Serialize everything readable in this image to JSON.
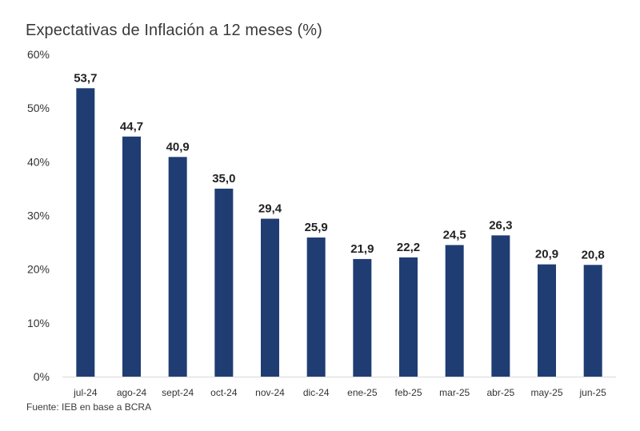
{
  "chart_data": {
    "type": "bar",
    "title": "Expectativas de Inflación a 12 meses (%)",
    "source": "Fuente: IEB en base a BCRA",
    "categories": [
      "jul-24",
      "ago-24",
      "sept-24",
      "oct-24",
      "nov-24",
      "dic-24",
      "ene-25",
      "feb-25",
      "mar-25",
      "abr-25",
      "may-25",
      "jun-25"
    ],
    "values": [
      53.7,
      44.7,
      40.9,
      35.0,
      29.4,
      25.9,
      21.9,
      22.2,
      24.5,
      26.3,
      20.9,
      20.8
    ],
    "value_labels": [
      "53,7",
      "44,7",
      "40,9",
      "35,0",
      "29,4",
      "25,9",
      "21,9",
      "22,2",
      "24,5",
      "26,3",
      "20,9",
      "20,8"
    ],
    "y_ticks": [
      0,
      10,
      20,
      30,
      40,
      50,
      60
    ],
    "y_tick_labels": [
      "0%",
      "10%",
      "20%",
      "30%",
      "40%",
      "50%",
      "60%"
    ],
    "ylim": [
      0,
      60
    ],
    "xlabel": "",
    "ylabel": "",
    "grid": false,
    "legend": "none",
    "bar_color": "#1f3d73"
  }
}
